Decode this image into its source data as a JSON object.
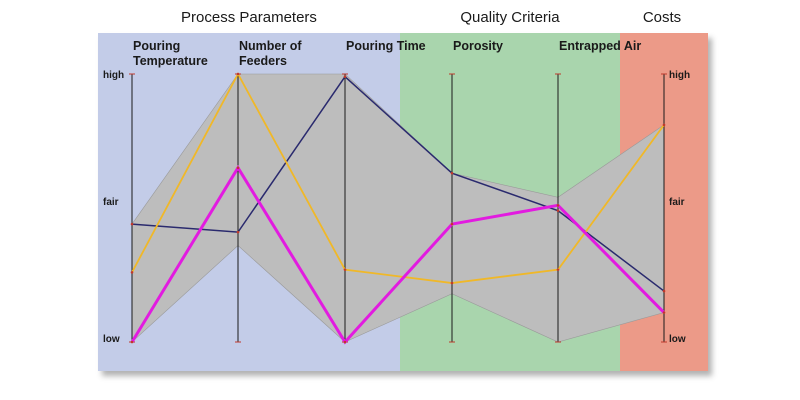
{
  "chart_data": {
    "type": "parallel-coordinates",
    "groups": [
      {
        "name": "Process Parameters",
        "axes": [
          0,
          1,
          2
        ],
        "color": "#c3cce8"
      },
      {
        "name": "Quality Criteria",
        "axes": [
          3,
          4
        ],
        "color": "#a9d5ad"
      },
      {
        "name": "Costs",
        "axes": [
          5
        ],
        "color": "#ec9a88"
      }
    ],
    "axes": [
      {
        "label": [
          "Pouring",
          "Temperature"
        ],
        "ticks": [
          "high",
          "fair",
          "low"
        ]
      },
      {
        "label": [
          "Number of",
          "Feeders"
        ]
      },
      {
        "label": [
          "Pouring Time"
        ]
      },
      {
        "label": [
          "Porosity"
        ]
      },
      {
        "label": [
          "Entrapped Air"
        ]
      },
      {
        "label": [],
        "ticks": [
          "high",
          "fair",
          "low"
        ]
      }
    ],
    "ylim": [
      0,
      1
    ],
    "band": {
      "color": "#bdbdbd",
      "upper": [
        0.44,
        1.0,
        1.0,
        0.63,
        0.54,
        0.81
      ],
      "lower": [
        0.0,
        0.36,
        0.0,
        0.18,
        0.0,
        0.11
      ]
    },
    "series": [
      {
        "color": "#2a2a6e",
        "width": 1.5,
        "values": [
          0.44,
          0.41,
          0.99,
          0.63,
          0.49,
          0.19
        ]
      },
      {
        "color": "#f0b828",
        "width": 1.8,
        "values": [
          0.26,
          1.0,
          0.27,
          0.22,
          0.27,
          0.81
        ]
      },
      {
        "color": "#e21be0",
        "width": 3.0,
        "values": [
          0.0,
          0.65,
          0.0,
          0.44,
          0.51,
          0.11
        ]
      }
    ]
  }
}
